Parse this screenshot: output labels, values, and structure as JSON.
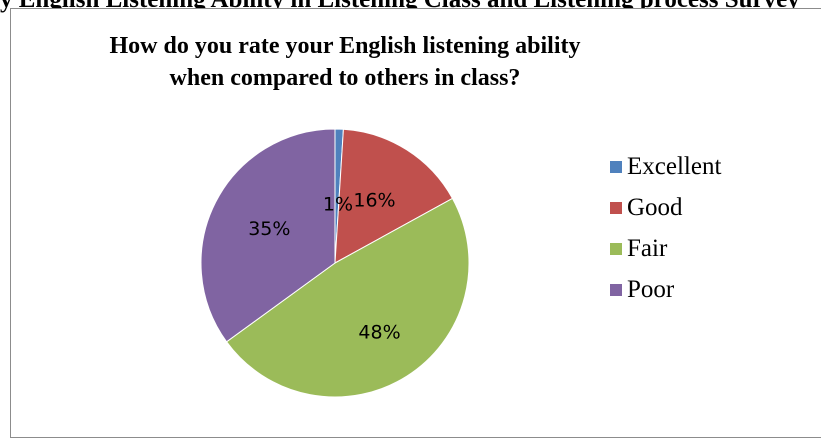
{
  "caption_fragment": "y   English Listening Ability in Listening Class and Listening process Survey",
  "chart_data": {
    "type": "pie",
    "title_lines": [
      "How do you rate your English listening  ability",
      "when compared to others in class?"
    ],
    "categories": [
      "Excellent",
      "Good",
      "Fair",
      "Poor"
    ],
    "values": [
      1,
      16,
      48,
      35
    ],
    "data_labels": [
      "1%",
      "16%",
      "48%",
      "35%"
    ],
    "colors": [
      "#4f81bd",
      "#c0504d",
      "#9bbb59",
      "#8064a2"
    ],
    "legend_position": "right",
    "start_angle": "12 o'clock",
    "direction": "clockwise"
  }
}
